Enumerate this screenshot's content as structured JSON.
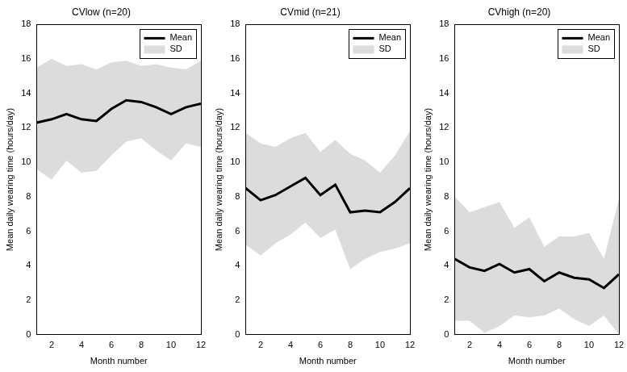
{
  "chart_data": [
    {
      "type": "line",
      "title": "CVlow (n=20)",
      "x_label": "Month number",
      "y_label": "Mean daily wearing time (hours/day)",
      "x": [
        1,
        2,
        3,
        4,
        5,
        6,
        7,
        8,
        9,
        10,
        11,
        12
      ],
      "xlim": [
        1,
        12
      ],
      "xticks": [
        2,
        4,
        6,
        8,
        10,
        12
      ],
      "ylim": [
        0,
        18
      ],
      "yticks": [
        0,
        2,
        4,
        6,
        8,
        10,
        12,
        14,
        16,
        18
      ],
      "grid": false,
      "legend": "upper right",
      "series": [
        {
          "name": "Mean",
          "color": "#000000",
          "type": "line",
          "values": [
            12.3,
            12.5,
            12.8,
            12.5,
            12.4,
            13.1,
            13.6,
            13.5,
            13.2,
            12.8,
            13.2,
            13.4
          ]
        },
        {
          "name": "SD",
          "color": "#dcdcdc",
          "type": "band",
          "upper": [
            15.5,
            16.0,
            15.6,
            15.7,
            15.4,
            15.8,
            15.9,
            15.6,
            15.7,
            15.5,
            15.4,
            15.9
          ],
          "lower": [
            9.6,
            9.0,
            10.1,
            9.4,
            9.5,
            10.4,
            11.2,
            11.4,
            10.7,
            10.1,
            11.1,
            10.9
          ]
        }
      ]
    },
    {
      "type": "line",
      "title": "CVmid (n=21)",
      "x_label": "Month number",
      "y_label": "Mean daily wearing time (hours/day)",
      "x": [
        1,
        2,
        3,
        4,
        5,
        6,
        7,
        8,
        9,
        10,
        11,
        12
      ],
      "xlim": [
        1,
        12
      ],
      "xticks": [
        2,
        4,
        6,
        8,
        10,
        12
      ],
      "ylim": [
        0,
        18
      ],
      "yticks": [
        0,
        2,
        4,
        6,
        8,
        10,
        12,
        14,
        16,
        18
      ],
      "grid": false,
      "legend": "upper right",
      "series": [
        {
          "name": "Mean",
          "color": "#000000",
          "type": "line",
          "values": [
            8.5,
            7.8,
            8.1,
            8.6,
            9.1,
            8.1,
            8.7,
            7.1,
            7.2,
            7.1,
            7.7,
            8.5
          ]
        },
        {
          "name": "SD",
          "color": "#dcdcdc",
          "type": "band",
          "upper": [
            11.7,
            11.1,
            10.9,
            11.4,
            11.7,
            10.6,
            11.3,
            10.5,
            10.1,
            9.4,
            10.4,
            11.8
          ],
          "lower": [
            5.2,
            4.6,
            5.3,
            5.8,
            6.5,
            5.6,
            6.1,
            3.8,
            4.4,
            4.8,
            5.0,
            5.3
          ]
        }
      ]
    },
    {
      "type": "line",
      "title": "CVhigh (n=20)",
      "x_label": "Month number",
      "y_label": "Mean daily wearing time (hours/day)",
      "x": [
        1,
        2,
        3,
        4,
        5,
        6,
        7,
        8,
        9,
        10,
        11,
        12
      ],
      "xlim": [
        1,
        12
      ],
      "xticks": [
        2,
        4,
        6,
        8,
        10,
        12
      ],
      "ylim": [
        0,
        18
      ],
      "yticks": [
        0,
        2,
        4,
        6,
        8,
        10,
        12,
        14,
        16,
        18
      ],
      "grid": false,
      "legend": "upper right",
      "series": [
        {
          "name": "Mean",
          "color": "#000000",
          "type": "line",
          "values": [
            4.4,
            3.9,
            3.7,
            4.1,
            3.6,
            3.8,
            3.1,
            3.6,
            3.3,
            3.2,
            2.7,
            3.5
          ]
        },
        {
          "name": "SD",
          "color": "#dcdcdc",
          "type": "band",
          "upper": [
            8.0,
            7.1,
            7.4,
            7.7,
            6.2,
            6.8,
            5.1,
            5.7,
            5.7,
            5.9,
            4.4,
            7.9
          ],
          "lower": [
            0.8,
            0.8,
            0.1,
            0.5,
            1.1,
            1.0,
            1.1,
            1.5,
            0.9,
            0.5,
            1.1,
            0.0
          ]
        }
      ]
    }
  ]
}
